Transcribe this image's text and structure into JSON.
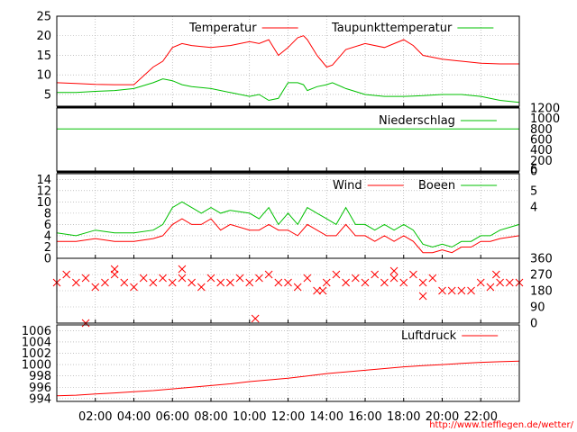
{
  "colors": {
    "primary": "#ff0000",
    "secondary": "#00c000",
    "grid": "#a0a0a0",
    "axis": "#000000"
  },
  "source_url": "http://www.tiefflegen.de/wetter/",
  "x_axis": {
    "tick_labels": [
      "02:00",
      "04:00",
      "06:00",
      "08:00",
      "10:00",
      "12:00",
      "14:00",
      "16:00",
      "18:00",
      "20:00",
      "22:00"
    ]
  },
  "chart_data": [
    {
      "type": "line",
      "legend_position": "top",
      "ylim": [
        2,
        25
      ],
      "y_ticks": [
        5,
        10,
        15,
        20,
        25
      ],
      "grid": true,
      "x": [
        0,
        1,
        2,
        3,
        4,
        5,
        5.5,
        6,
        6.5,
        7,
        8,
        9,
        10,
        10.5,
        11,
        11.5,
        12,
        12.5,
        12.8,
        13,
        13.5,
        14,
        14.3,
        15,
        16,
        17,
        18,
        18.5,
        19,
        20,
        21,
        22,
        23,
        24
      ],
      "series": [
        {
          "name": "Temperatur",
          "color": "#ff0000",
          "values": [
            8,
            7.8,
            7.6,
            7.5,
            7.5,
            12,
            13.5,
            17,
            18,
            17.5,
            17,
            17.5,
            18.5,
            18,
            19,
            15,
            17,
            19.5,
            20,
            19,
            15,
            12,
            12.5,
            16.5,
            18,
            17,
            19,
            17.5,
            15,
            14,
            13.5,
            13,
            12.8,
            12.8
          ]
        },
        {
          "name": "Taupunkttemperatur",
          "color": "#00c000",
          "values": [
            5.5,
            5.5,
            5.8,
            6,
            6.5,
            8,
            9,
            8.5,
            7.5,
            7,
            6.5,
            5.5,
            4.5,
            5,
            3.5,
            4,
            8,
            8,
            7.5,
            6,
            7,
            7.5,
            8,
            6.5,
            5,
            4.5,
            4.5,
            4.6,
            4.7,
            5,
            5,
            4.5,
            3.5,
            3
          ]
        }
      ]
    },
    {
      "type": "line",
      "legend_position": "top-right",
      "ylim": [
        0,
        1200
      ],
      "y_ticks": [
        0,
        200,
        400,
        600,
        800,
        1000,
        1200
      ],
      "grid": false,
      "x": [
        0,
        24
      ],
      "series": [
        {
          "name": "Niederschlag",
          "color": "#00c000",
          "values": [
            800,
            800
          ]
        }
      ]
    },
    {
      "type": "line",
      "legend_position": "top",
      "ylim": [
        0,
        15
      ],
      "y_ticks": [
        0,
        2,
        4,
        6,
        8,
        10,
        12,
        14
      ],
      "right_tick_labels": [
        "4",
        "5",
        "6"
      ],
      "grid": true,
      "x": [
        0,
        1,
        2,
        3,
        4,
        5,
        5.5,
        6,
        6.5,
        7,
        7.5,
        8,
        8.5,
        9,
        10,
        10.5,
        11,
        11.5,
        12,
        12.5,
        13,
        13.5,
        14,
        14.5,
        15,
        15.5,
        16,
        16.5,
        17,
        17.5,
        18,
        18.5,
        19,
        19.5,
        20,
        20.5,
        21,
        21.5,
        22,
        22.5,
        23,
        24
      ],
      "series": [
        {
          "name": "Wind",
          "color": "#ff0000",
          "values": [
            3,
            3,
            3.5,
            3,
            3,
            3.5,
            4,
            6,
            7,
            6,
            6,
            7,
            5,
            6,
            5,
            5,
            6,
            5,
            5,
            4,
            6,
            5,
            4,
            4,
            6,
            4,
            4,
            3,
            4,
            3,
            4,
            3,
            1,
            1,
            1.5,
            1,
            2,
            2,
            3,
            3,
            3.5,
            4
          ]
        },
        {
          "name": "Boeen",
          "color": "#00c000",
          "values": [
            4.5,
            4,
            5,
            4.5,
            4.5,
            5,
            6,
            9,
            10,
            9,
            8,
            9,
            8,
            8.5,
            8,
            7,
            9,
            6,
            8,
            6,
            9,
            8,
            7,
            6,
            9,
            6,
            6,
            5,
            6,
            5,
            6,
            5,
            2.5,
            2,
            2.5,
            2,
            3,
            3,
            4,
            4,
            5,
            6
          ]
        }
      ]
    },
    {
      "type": "scatter",
      "ylim": [
        0,
        360
      ],
      "y_ticks": [
        0,
        90,
        180,
        270,
        360
      ],
      "grid": true,
      "marker": "x",
      "color": "#ff0000",
      "x": [
        0,
        0.5,
        1,
        1.5,
        2,
        2.5,
        3,
        3.5,
        4,
        4.5,
        5,
        5.5,
        6,
        6.5,
        7,
        7.5,
        8,
        8.5,
        9,
        9.5,
        10,
        10.5,
        11,
        11.5,
        12,
        12.5,
        13,
        13.5,
        14,
        14.5,
        15,
        15.5,
        16,
        16.5,
        17,
        17.5,
        18,
        18.5,
        19,
        19.5,
        20,
        20.5,
        21,
        21.5,
        22,
        22.5,
        23,
        23.5,
        24,
        1.5,
        10.3,
        3,
        6.5,
        13.8,
        17.5,
        19,
        22.8
      ],
      "values": [
        225,
        270,
        225,
        250,
        200,
        225,
        270,
        225,
        200,
        250,
        225,
        250,
        225,
        250,
        225,
        200,
        250,
        225,
        225,
        250,
        225,
        250,
        270,
        225,
        225,
        200,
        250,
        180,
        225,
        270,
        225,
        250,
        225,
        270,
        225,
        250,
        225,
        270,
        225,
        250,
        180,
        180,
        180,
        180,
        225,
        200,
        225,
        225,
        225,
        0,
        25,
        300,
        300,
        180,
        290,
        150,
        270
      ]
    },
    {
      "type": "line",
      "legend_position": "top-right",
      "ylim": [
        993.5,
        1007
      ],
      "y_ticks": [
        994,
        996,
        998,
        1000,
        1002,
        1004,
        1006
      ],
      "grid": true,
      "x": [
        0,
        1,
        2,
        3,
        4,
        5,
        6,
        7,
        8,
        9,
        10,
        11,
        12,
        13,
        14,
        15,
        16,
        17,
        18,
        19,
        20,
        21,
        22,
        23,
        24
      ],
      "series": [
        {
          "name": "Luftdruck",
          "color": "#ff0000",
          "values": [
            994.5,
            994.6,
            994.8,
            995,
            995.2,
            995.4,
            995.7,
            996,
            996.3,
            996.6,
            997,
            997.3,
            997.6,
            998,
            998.4,
            998.7,
            999,
            999.3,
            999.6,
            999.8,
            1000,
            1000.2,
            1000.4,
            1000.5,
            1000.6
          ]
        }
      ]
    }
  ]
}
